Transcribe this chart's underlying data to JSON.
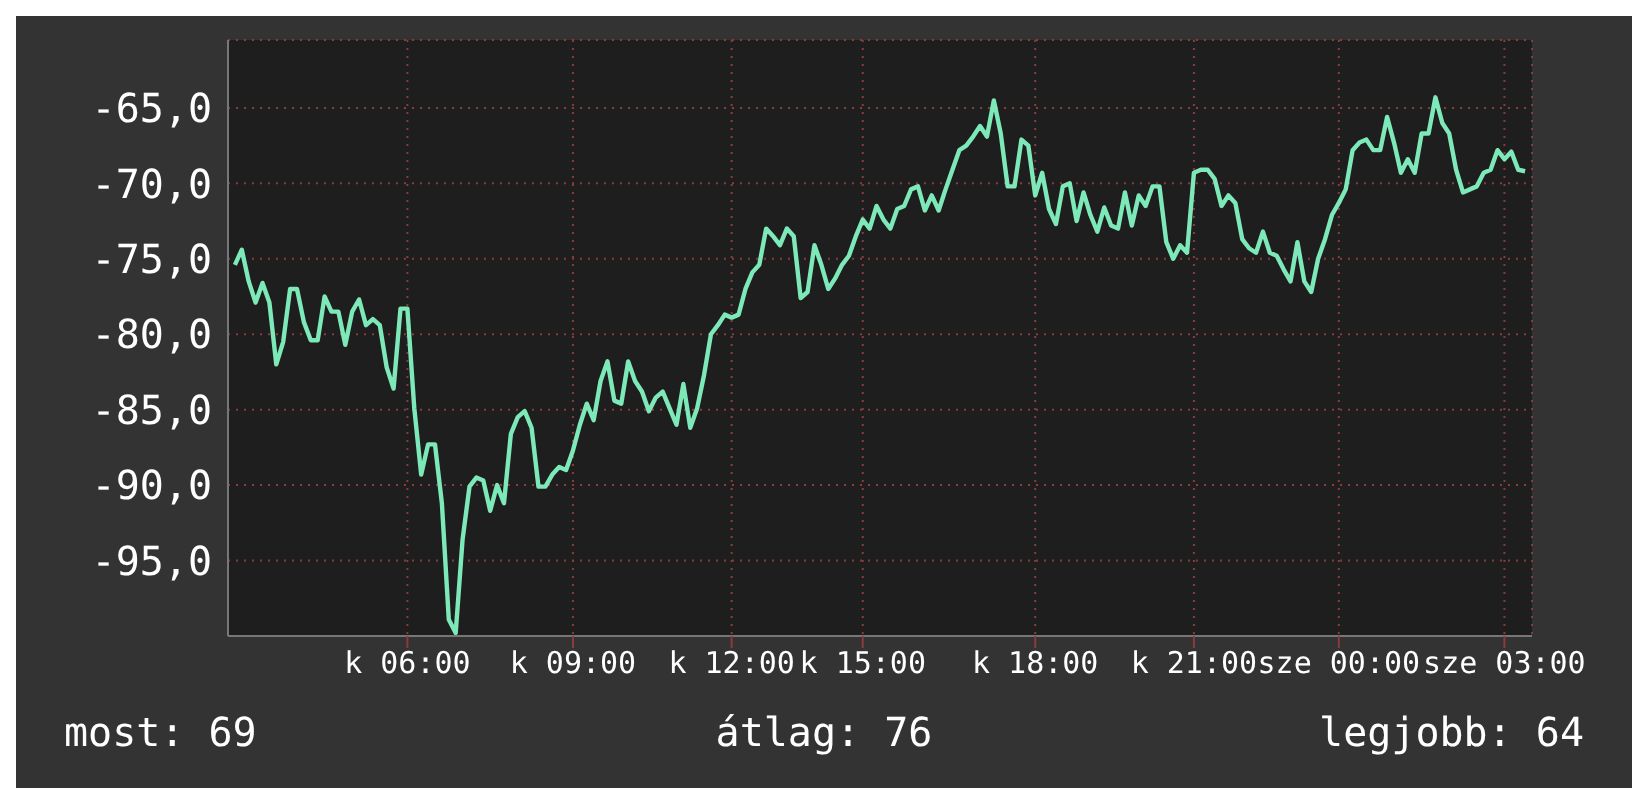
{
  "chart_data": {
    "type": "line",
    "annotations": [
      "most: 69",
      "átlag: 76",
      "legjobb: 64"
    ],
    "grid": true,
    "categories": [
      null,
      null,
      null,
      null,
      null,
      null,
      null,
      null,
      null,
      null,
      null,
      null,
      null,
      null,
      null,
      null,
      null,
      null,
      null,
      null,
      null,
      null,
      null,
      null,
      null,
      "k 06:00",
      null,
      null,
      null,
      null,
      null,
      null,
      null,
      null,
      null,
      null,
      null,
      null,
      null,
      null,
      null,
      null,
      null,
      null,
      null,
      null,
      null,
      null,
      null,
      "k 09:00",
      null,
      null,
      null,
      null,
      null,
      null,
      null,
      null,
      null,
      null,
      null,
      null,
      null,
      null,
      null,
      null,
      null,
      null,
      null,
      null,
      null,
      null,
      "k 12:00",
      null,
      null,
      null,
      null,
      null,
      null,
      null,
      null,
      null,
      null,
      null,
      null,
      null,
      null,
      null,
      null,
      null,
      null,
      "k 15:00",
      null,
      null,
      null,
      null,
      null,
      null,
      null,
      null,
      null,
      null,
      null,
      null,
      null,
      null,
      null,
      null,
      null,
      null,
      null,
      null,
      null,
      null,
      null,
      null,
      "k 18:00",
      null,
      null,
      null,
      null,
      null,
      null,
      null,
      null,
      null,
      null,
      null,
      null,
      null,
      null,
      null,
      null,
      null,
      null,
      null,
      null,
      null,
      null,
      "k 21:00",
      null,
      null,
      null,
      null,
      null,
      null,
      null,
      null,
      null,
      null,
      null,
      null,
      null,
      null,
      null,
      null,
      null,
      null,
      null,
      null,
      "sze 00:00",
      null,
      null,
      null,
      null,
      null,
      null,
      null,
      null,
      null,
      null,
      null,
      null,
      null,
      null,
      null,
      null,
      null,
      null,
      null,
      null,
      null,
      null,
      null,
      "sze 03:00",
      null,
      null,
      null
    ],
    "ylim": [
      -100,
      -60.5
    ],
    "yticks": [
      {
        "value": -95,
        "label": "-95,0"
      },
      {
        "value": -90,
        "label": "-90,0"
      },
      {
        "value": -85,
        "label": "-85,0"
      },
      {
        "value": -80,
        "label": "-80,0"
      },
      {
        "value": -75,
        "label": "-75,0"
      },
      {
        "value": -70,
        "label": "-70,0"
      },
      {
        "value": -65,
        "label": "-65,0"
      }
    ],
    "series": [
      {
        "color": "#7de8b8",
        "values": [
          -75.4,
          -74.4,
          -76.5,
          -77.9,
          -76.6,
          -77.9,
          -82.0,
          -80.5,
          -77.0,
          -77.0,
          -79.2,
          -80.4,
          -80.4,
          -77.5,
          -78.5,
          -78.5,
          -80.7,
          -78.5,
          -77.7,
          -79.4,
          -79.0,
          -79.4,
          -82.2,
          -83.6,
          -78.3,
          -78.3,
          -84.9,
          -89.3,
          -87.3,
          -87.3,
          -91.2,
          -98.9,
          -99.8,
          -93.6,
          -90.1,
          -89.5,
          -89.7,
          -91.7,
          -90.0,
          -91.2,
          -86.6,
          -85.5,
          -85.1,
          -86.2,
          -90.1,
          -90.1,
          -89.3,
          -88.8,
          -89.0,
          -87.7,
          -86.0,
          -84.6,
          -85.7,
          -83.1,
          -81.8,
          -84.4,
          -84.6,
          -81.8,
          -83.1,
          -83.8,
          -85.1,
          -84.2,
          -83.8,
          -84.9,
          -86.0,
          -83.3,
          -86.2,
          -84.9,
          -82.7,
          -80.0,
          -79.4,
          -78.7,
          -78.9,
          -78.7,
          -77.0,
          -75.9,
          -75.4,
          -73.0,
          -73.5,
          -74.1,
          -73.0,
          -73.5,
          -77.6,
          -77.2,
          -74.1,
          -75.4,
          -77.0,
          -76.3,
          -75.4,
          -74.8,
          -73.5,
          -72.4,
          -73.0,
          -71.5,
          -72.4,
          -73.0,
          -71.7,
          -71.5,
          -70.4,
          -70.2,
          -71.8,
          -70.8,
          -71.8,
          -70.4,
          -69.1,
          -67.8,
          -67.5,
          -66.9,
          -66.2,
          -66.9,
          -64.5,
          -66.7,
          -70.2,
          -70.2,
          -67.1,
          -67.5,
          -70.8,
          -69.3,
          -71.7,
          -72.7,
          -70.2,
          -70.0,
          -72.5,
          -70.6,
          -72.1,
          -73.2,
          -71.6,
          -72.8,
          -73.0,
          -70.6,
          -72.8,
          -70.8,
          -71.5,
          -70.2,
          -70.2,
          -73.9,
          -75.0,
          -74.1,
          -74.6,
          -69.3,
          -69.1,
          -69.1,
          -69.7,
          -71.5,
          -70.8,
          -71.3,
          -73.7,
          -74.3,
          -74.6,
          -73.2,
          -74.6,
          -74.8,
          -75.7,
          -76.5,
          -73.9,
          -76.5,
          -77.2,
          -75.0,
          -73.7,
          -72.1,
          -71.3,
          -70.4,
          -67.8,
          -67.3,
          -67.1,
          -67.8,
          -67.8,
          -65.6,
          -67.3,
          -69.3,
          -68.4,
          -69.3,
          -66.7,
          -66.7,
          -64.3,
          -66.0,
          -66.7,
          -69.1,
          -70.6,
          -70.4,
          -70.2,
          -69.3,
          -69.1,
          -67.8,
          -68.4,
          -67.9,
          -69.1,
          -69.2
        ]
      }
    ]
  }
}
